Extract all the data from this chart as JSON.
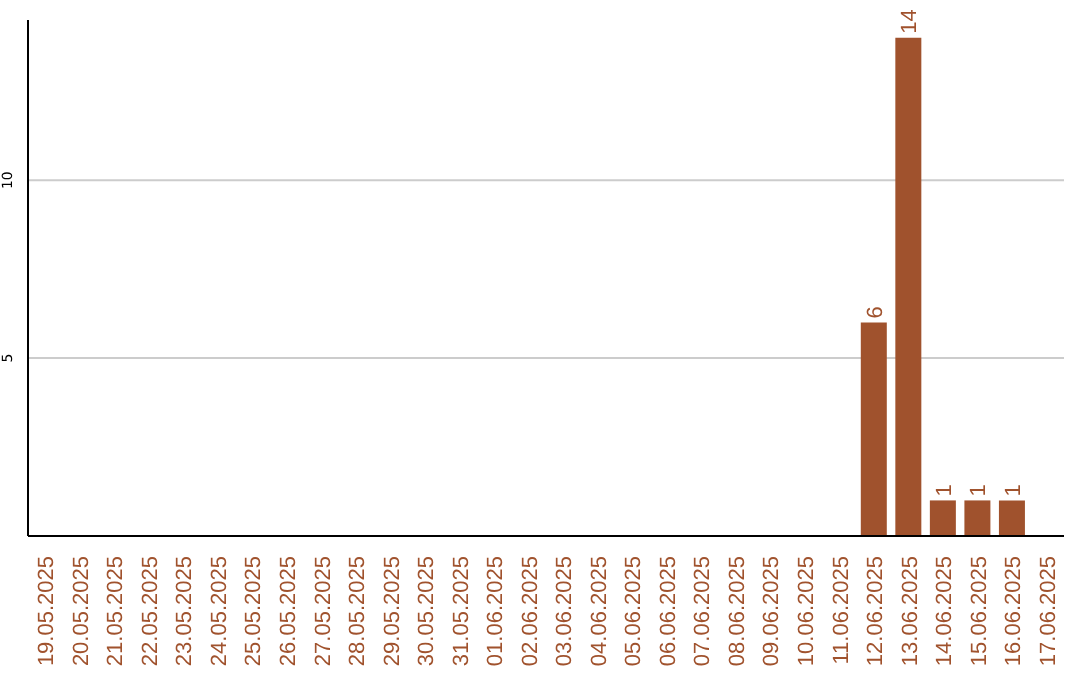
{
  "chart_data": {
    "type": "bar",
    "categories": [
      "19.05.2025",
      "20.05.2025",
      "21.05.2025",
      "22.05.2025",
      "23.05.2025",
      "24.05.2025",
      "25.05.2025",
      "26.05.2025",
      "27.05.2025",
      "28.05.2025",
      "29.05.2025",
      "30.05.2025",
      "31.05.2025",
      "01.06.2025",
      "02.06.2025",
      "03.06.2025",
      "04.06.2025",
      "05.06.2025",
      "06.06.2025",
      "07.06.2025",
      "08.06.2025",
      "09.06.2025",
      "10.06.2025",
      "11.06.2025",
      "12.06.2025",
      "13.06.2025",
      "14.06.2025",
      "15.06.2025",
      "16.06.2025",
      "17.06.2025"
    ],
    "values": [
      0,
      0,
      0,
      0,
      0,
      0,
      0,
      0,
      0,
      0,
      0,
      0,
      0,
      0,
      0,
      0,
      0,
      0,
      0,
      0,
      0,
      0,
      0,
      0,
      6,
      14,
      1,
      1,
      1,
      0
    ],
    "value_labels": [
      null,
      null,
      null,
      null,
      null,
      null,
      null,
      null,
      null,
      null,
      null,
      null,
      null,
      null,
      null,
      null,
      null,
      null,
      null,
      null,
      null,
      null,
      null,
      null,
      "6",
      "14",
      "1",
      "1",
      "1",
      null
    ],
    "color": "#a0522d",
    "ylim": [
      0,
      14.5
    ],
    "yticks": [
      5,
      10
    ],
    "grid": "y"
  }
}
